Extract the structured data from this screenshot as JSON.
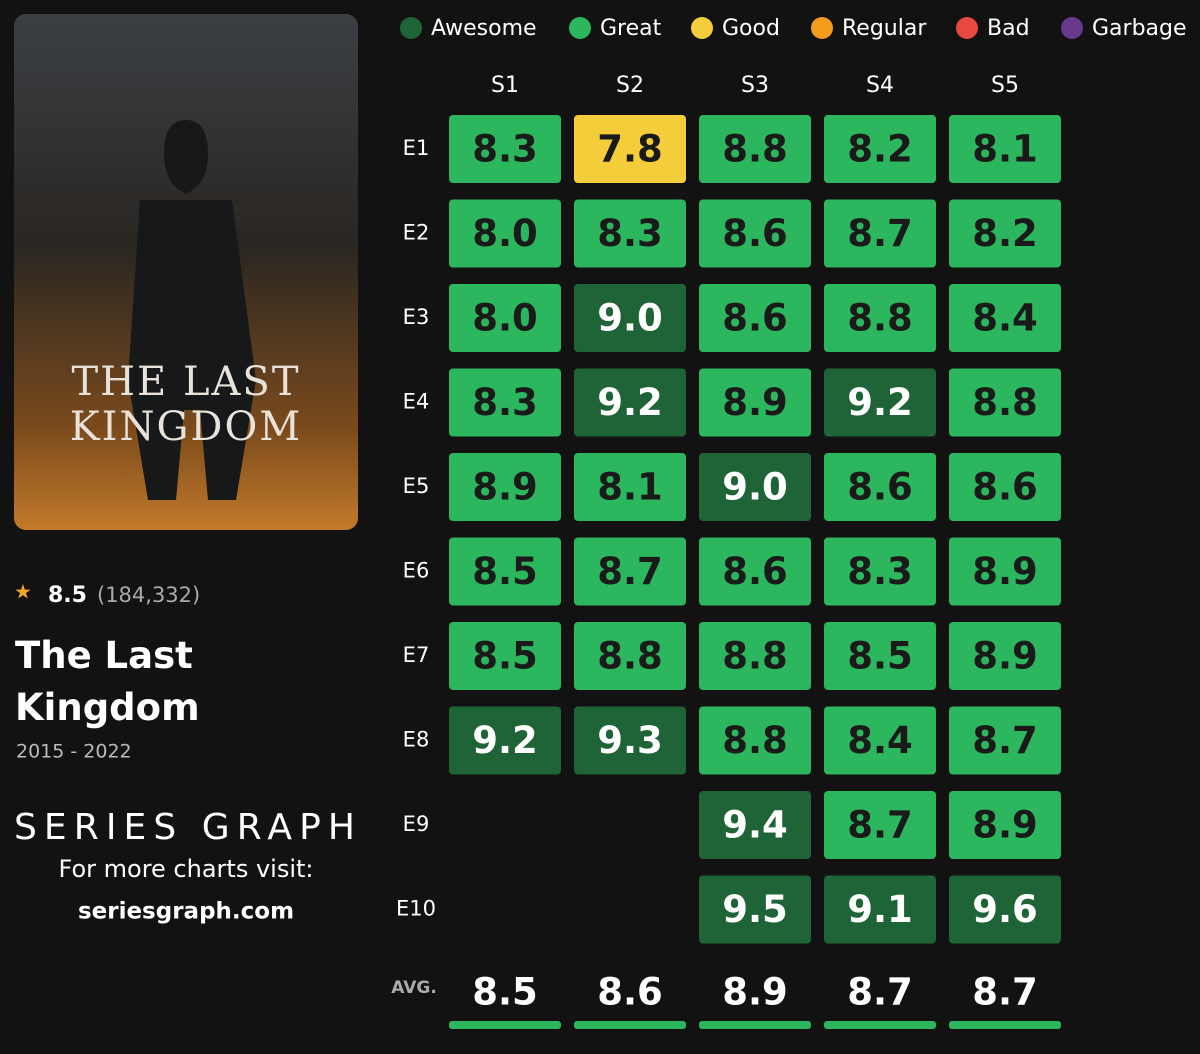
{
  "chart_data": {
    "type": "heatmap",
    "legend": [
      {
        "name": "Awesome",
        "color": "#1e6436"
      },
      {
        "name": "Great",
        "color": "#2cb65d"
      },
      {
        "name": "Good",
        "color": "#f4cd3a"
      },
      {
        "name": "Regular",
        "color": "#f39c1e"
      },
      {
        "name": "Bad",
        "color": "#e8483f"
      },
      {
        "name": "Garbage",
        "color": "#6a3a8a"
      }
    ],
    "categories": [
      "E1",
      "E2",
      "E3",
      "E4",
      "E5",
      "E6",
      "E7",
      "E8",
      "E9",
      "E10"
    ],
    "series": [
      {
        "name": "S1",
        "values": [
          8.3,
          8.0,
          8.0,
          8.3,
          8.9,
          8.5,
          8.5,
          9.2,
          null,
          null
        ],
        "value_labels": [
          "8.3",
          "8.0",
          "8.0",
          "8.3",
          "8.9",
          "8.5",
          "8.5",
          "9.2",
          null,
          null
        ],
        "colors": [
          "#2cb65d",
          "#2cb65d",
          "#2cb65d",
          "#2cb65d",
          "#2cb65d",
          "#2cb65d",
          "#2cb65d",
          "#1e6436",
          null,
          null
        ]
      },
      {
        "name": "S2",
        "values": [
          7.8,
          8.3,
          9.0,
          9.2,
          8.1,
          8.7,
          8.8,
          9.3,
          null,
          null
        ],
        "value_labels": [
          "7.8",
          "8.3",
          "9.0",
          "9.2",
          "8.1",
          "8.7",
          "8.8",
          "9.3",
          null,
          null
        ],
        "colors": [
          "#f4cd3a",
          "#2cb65d",
          "#1e6436",
          "#1e6436",
          "#2cb65d",
          "#2cb65d",
          "#2cb65d",
          "#1e6436",
          null,
          null
        ]
      },
      {
        "name": "S3",
        "values": [
          8.8,
          8.6,
          8.6,
          8.9,
          9.0,
          8.6,
          8.8,
          8.8,
          9.4,
          9.5
        ],
        "value_labels": [
          "8.8",
          "8.6",
          "8.6",
          "8.9",
          "9.0",
          "8.6",
          "8.8",
          "8.8",
          "9.4",
          "9.5"
        ],
        "colors": [
          "#2cb65d",
          "#2cb65d",
          "#2cb65d",
          "#2cb65d",
          "#1e6436",
          "#2cb65d",
          "#2cb65d",
          "#2cb65d",
          "#1e6436",
          "#1e6436"
        ]
      },
      {
        "name": "S4",
        "values": [
          8.2,
          8.7,
          8.8,
          9.2,
          8.6,
          8.3,
          8.5,
          8.4,
          8.7,
          9.1
        ],
        "value_labels": [
          "8.2",
          "8.7",
          "8.8",
          "9.2",
          "8.6",
          "8.3",
          "8.5",
          "8.4",
          "8.7",
          "9.1"
        ],
        "colors": [
          "#2cb65d",
          "#2cb65d",
          "#2cb65d",
          "#1e6436",
          "#2cb65d",
          "#2cb65d",
          "#2cb65d",
          "#2cb65d",
          "#2cb65d",
          "#1e6436"
        ]
      },
      {
        "name": "S5",
        "values": [
          8.1,
          8.2,
          8.4,
          8.8,
          8.6,
          8.9,
          8.9,
          8.7,
          8.9,
          9.6
        ],
        "value_labels": [
          "8.1",
          "8.2",
          "8.4",
          "8.8",
          "8.6",
          "8.9",
          "8.9",
          "8.7",
          "8.9",
          "9.6"
        ],
        "colors": [
          "#2cb65d",
          "#2cb65d",
          "#2cb65d",
          "#2cb65d",
          "#2cb65d",
          "#2cb65d",
          "#2cb65d",
          "#2cb65d",
          "#2cb65d",
          "#1e6436"
        ]
      }
    ],
    "average_label": "AVG.",
    "averages": [
      8.5,
      8.6,
      8.9,
      8.7,
      8.7
    ],
    "average_color": "#2cb65d"
  },
  "show": {
    "poster_title": [
      "THE LAST",
      "KINGDOM"
    ],
    "rating": 8.5,
    "votes": "(184,332)",
    "title": "The Last Kingdom",
    "years": "2015 - 2022"
  },
  "branding": {
    "logo": "SERIES GRAPH",
    "tagline": "For more charts visit:",
    "url": "seriesgraph.com"
  }
}
